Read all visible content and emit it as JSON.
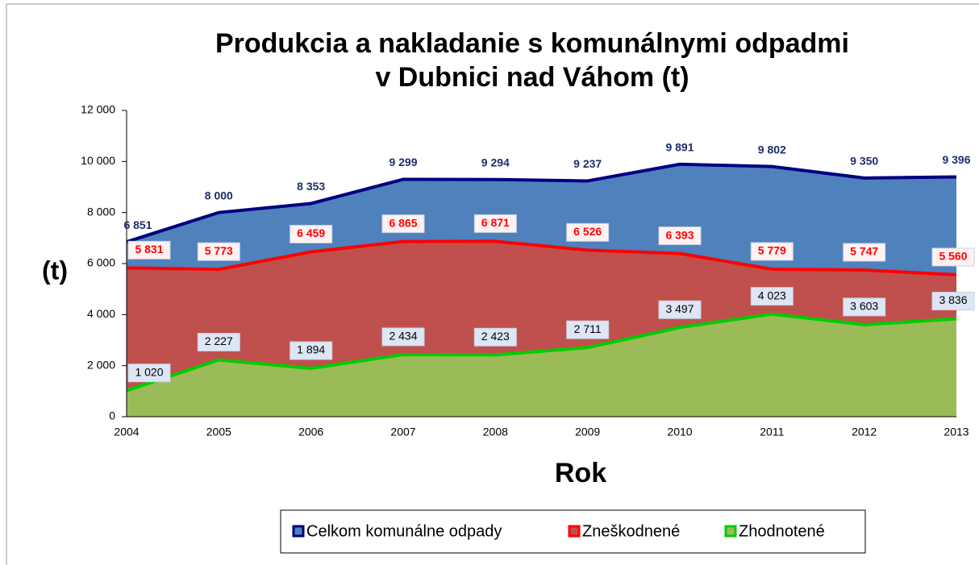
{
  "chart_data": {
    "type": "area",
    "title": "Produkcia a nakladanie s komunálnymi odpadmi",
    "subtitle": "v Dubnici nad Váhom (t)",
    "ylabel": "(t)",
    "xlabel": "Rok",
    "categories": [
      "2004",
      "2005",
      "2006",
      "2007",
      "2008",
      "2009",
      "2010",
      "2011",
      "2012",
      "2013"
    ],
    "series": [
      {
        "name": "Celkom komunálne odpady",
        "color": "#000080",
        "fill": "#4f81bd",
        "values": [
          6851,
          8000,
          8353,
          9299,
          9294,
          9237,
          9891,
          9802,
          9350,
          9396
        ],
        "value_labels": [
          "6 851",
          "8 000",
          "8 353",
          "9 299",
          "9 294",
          "9 237",
          "9 891",
          "9 802",
          "9 350",
          "9 396"
        ]
      },
      {
        "name": "Zneškodnené",
        "color": "#ff0000",
        "fill": "#c0504d",
        "values": [
          5831,
          5773,
          6459,
          6865,
          6871,
          6526,
          6393,
          5779,
          5747,
          5560
        ],
        "value_labels": [
          "5 831",
          "5 773",
          "6 459",
          "6 865",
          "6 871",
          "6 526",
          "6 393",
          "5 779",
          "5 747",
          "5 560"
        ]
      },
      {
        "name": "Zhodnotené",
        "color": "#00cc00",
        "fill": "#9bbb59",
        "values": [
          1020,
          2227,
          1894,
          2434,
          2423,
          2711,
          3497,
          4023,
          3603,
          3836
        ],
        "value_labels": [
          "1 020",
          "2 227",
          "1 894",
          "2 434",
          "2 423",
          "2 711",
          "3 497",
          "4 023",
          "3 603",
          "3 836"
        ]
      }
    ],
    "ylim": [
      0,
      12000
    ],
    "yticks": [
      0,
      {
        "value": 2000,
        "label": "2 000"
      },
      {
        "value": 4000,
        "label": "4 000"
      },
      {
        "value": 6000,
        "label": "6 000"
      },
      {
        "value": 8000,
        "label": "8 000"
      },
      {
        "value": 10000,
        "label": "10 000"
      },
      {
        "value": 12000,
        "label": "12 000"
      }
    ],
    "legend": "bottom"
  }
}
